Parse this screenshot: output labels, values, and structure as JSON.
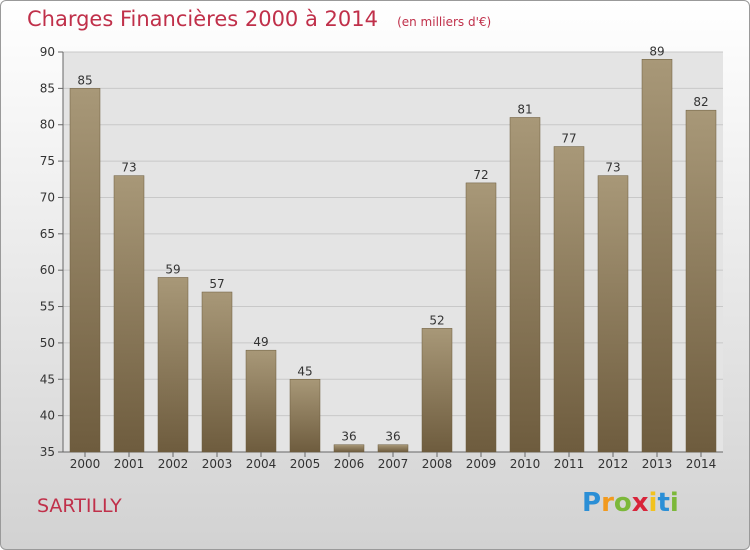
{
  "chart_data": {
    "type": "bar",
    "title": "Charges Financières 2000 à 2014",
    "subtitle": "(en milliers d'€)",
    "categories": [
      "2000",
      "2001",
      "2002",
      "2003",
      "2004",
      "2005",
      "2006",
      "2007",
      "2008",
      "2009",
      "2010",
      "2011",
      "2012",
      "2013",
      "2014"
    ],
    "values": [
      85,
      73,
      59,
      57,
      49,
      45,
      36,
      36,
      52,
      72,
      81,
      77,
      73,
      89,
      82
    ],
    "ylim": [
      35,
      90
    ],
    "yticks": [
      35,
      40,
      45,
      50,
      55,
      60,
      65,
      70,
      75,
      80,
      85,
      90
    ],
    "grid": true,
    "bar_color_top": "#a89878",
    "bar_color_bottom": "#6e5c3e"
  },
  "footer": {
    "commune": "SARTILLY"
  },
  "logo": {
    "letters": [
      "P",
      "r",
      "o",
      "x",
      "i",
      "t",
      "i"
    ],
    "colors": [
      "#2b8fd6",
      "#f29a1e",
      "#7cb83a",
      "#d8243a",
      "#f2c21e",
      "#2b8fd6",
      "#7cb83a"
    ]
  },
  "colors": {
    "accent": "#c0304a",
    "grid": "#c8c8c8",
    "axis_text": "#333333"
  }
}
